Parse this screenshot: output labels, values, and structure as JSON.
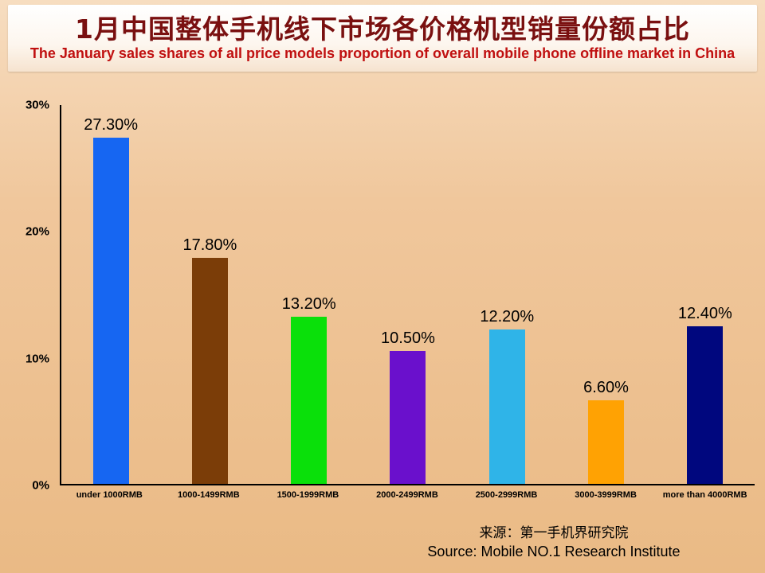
{
  "header": {
    "title_cn": "1月中国整体手机线下市场各价格机型销量份额占比",
    "title_en": "The January sales shares of all price models proportion of overall mobile phone offline market in China"
  },
  "chart_data": {
    "type": "bar",
    "title": "1月中国整体手机线下市场各价格机型销量份额占比",
    "categories": [
      "under 1000RMB",
      "1000-1499RMB",
      "1500-1999RMB",
      "2000-2499RMB",
      "2500-2999RMB",
      "3000-3999RMB",
      "more than 4000RMB"
    ],
    "values": [
      27.3,
      17.8,
      13.2,
      10.5,
      12.2,
      6.6,
      12.4
    ],
    "value_labels": [
      "27.30%",
      "17.80%",
      "13.20%",
      "10.50%",
      "12.20%",
      "6.60%",
      "12.40%"
    ],
    "bar_colors": [
      "#1666f2",
      "#7b3d08",
      "#0ae00a",
      "#6a10cc",
      "#2fb4e8",
      "#ffa203",
      "#00077e"
    ],
    "xlabel": "",
    "ylabel": "",
    "ylim": [
      0,
      30
    ],
    "y_ticks": [
      "0%",
      "10%",
      "20%",
      "30%"
    ],
    "grid": false,
    "legend": false
  },
  "source": {
    "cn": "来源：第一手机界研究院",
    "en": "Source: Mobile NO.1 Research Institute"
  }
}
